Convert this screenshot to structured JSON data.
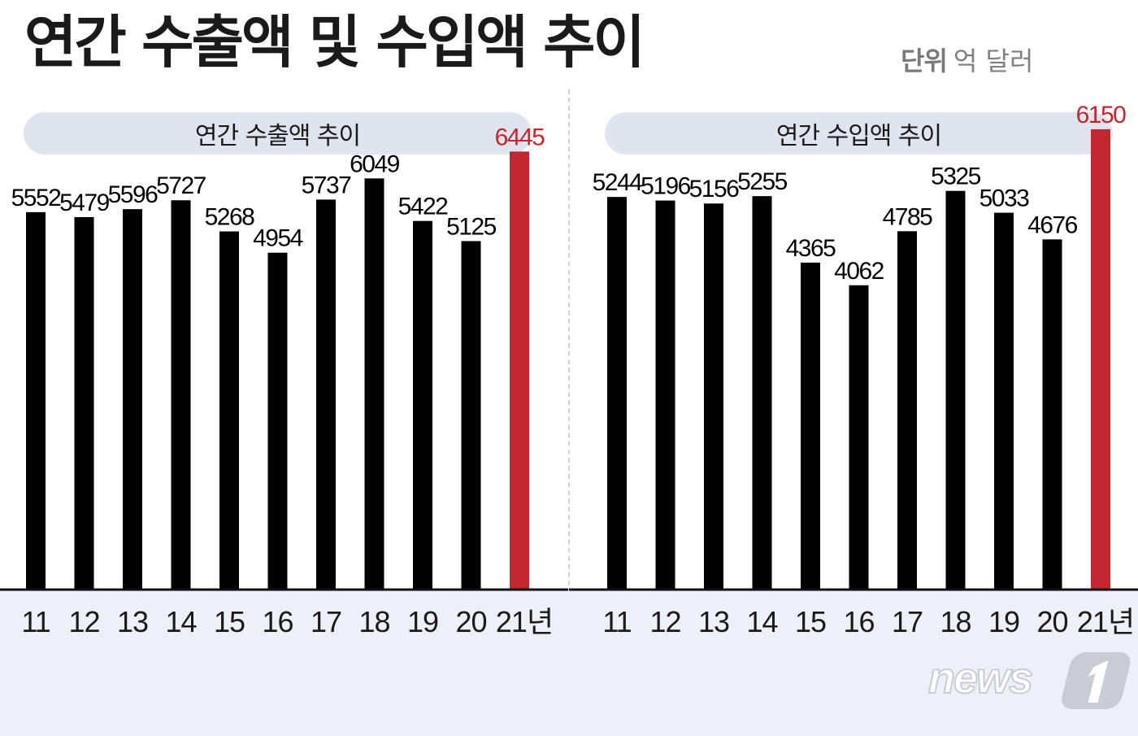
{
  "title": "연간 수출액 및 수입액 추이",
  "unit": {
    "label": "단위",
    "value": "억 달러"
  },
  "colors": {
    "bar": "#000000",
    "highlight": "#c1272d",
    "band": "#edf0f7",
    "pill": "#e0e4ee"
  },
  "logo_text": "news1",
  "chart_data": [
    {
      "type": "bar",
      "title": "연간 수출액 추이",
      "categories": [
        "11",
        "12",
        "13",
        "14",
        "15",
        "16",
        "17",
        "18",
        "19",
        "20",
        "21년"
      ],
      "values": [
        5552,
        5479,
        5596,
        5727,
        5268,
        4954,
        5737,
        6049,
        5422,
        5125,
        6445
      ],
      "highlight_index": 10,
      "ylim": [
        0,
        7600
      ],
      "grid": false
    },
    {
      "type": "bar",
      "title": "연간 수입액 추이",
      "categories": [
        "11",
        "12",
        "13",
        "14",
        "15",
        "16",
        "17",
        "18",
        "19",
        "20",
        "21년"
      ],
      "values": [
        5244,
        5196,
        5156,
        5255,
        4365,
        4062,
        4785,
        5325,
        5033,
        4676,
        6150
      ],
      "highlight_index": 10,
      "ylim": [
        0,
        6900
      ],
      "grid": false
    }
  ]
}
